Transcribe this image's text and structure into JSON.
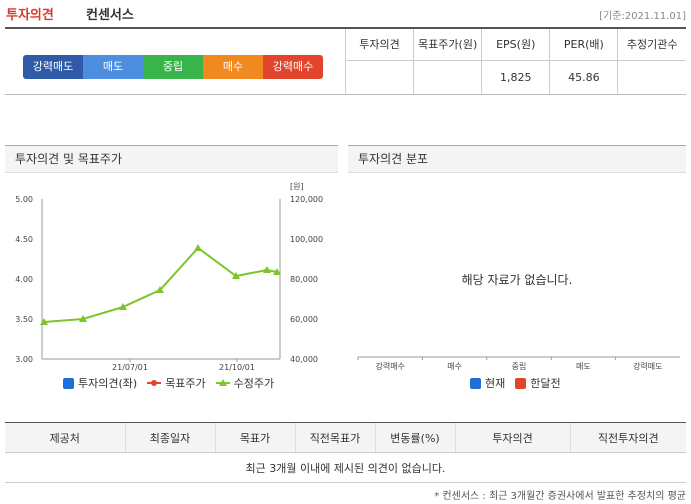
{
  "header": {
    "title": "투자의견",
    "subtitle": "컨센서스",
    "base_date": "[기준:2021.11.01]"
  },
  "scale": [
    "강력매도",
    "매도",
    "중립",
    "매수",
    "강력매수"
  ],
  "summary": {
    "headers": [
      "투자의견",
      "목표주가(원)",
      "EPS(원)",
      "PER(배)",
      "추정기관수"
    ],
    "values": [
      "",
      "",
      "1,825",
      "45.86",
      ""
    ]
  },
  "left_panel": {
    "title": "투자의견 및 목표주가",
    "legend": [
      "투자의견(좌)",
      "목표주가",
      "수정주가"
    ]
  },
  "right_panel": {
    "title": "투자의견 분포",
    "no_data": "해당 자료가 없습니다.",
    "categories": [
      "강력매수",
      "매수",
      "중립",
      "매도",
      "강력매도"
    ],
    "legend": [
      "현재",
      "한달전"
    ]
  },
  "chart_data": {
    "type": "line",
    "y_left_ticks": [
      "5.00",
      "4.50",
      "4.00",
      "3.50",
      "3.00"
    ],
    "y_right_ticks": [
      "120,000",
      "100,000",
      "80,000",
      "60,000",
      "40,000"
    ],
    "y_right_unit": "[원]",
    "x_ticks": [
      "21/07/01",
      "21/10/01"
    ],
    "ylim_right": [
      40000,
      120000
    ],
    "series": [
      {
        "name": "수정주가",
        "color": "#7dc52a",
        "values": [
          58500,
          60000,
          66000,
          74500,
          95500,
          81500,
          84500,
          83500
        ]
      }
    ]
  },
  "history": {
    "headers": [
      "제공처",
      "최종일자",
      "목표가",
      "직전목표가",
      "변동률(%)",
      "투자의견",
      "직전투자의견"
    ],
    "empty_message": "최근 3개월 이내에 제시된 의견이 없습니다."
  },
  "footnote": "* 컨센서스 : 최근 3개월간 증권사에서 발표한 추정치의 평균",
  "colors": {
    "accent_title": "#d8392b",
    "current": "#1f6fd6",
    "month_ago": "#e2452c",
    "target_price": "#e2452c",
    "adj_price": "#7dc52a",
    "opinion": "#1f6fd6"
  }
}
